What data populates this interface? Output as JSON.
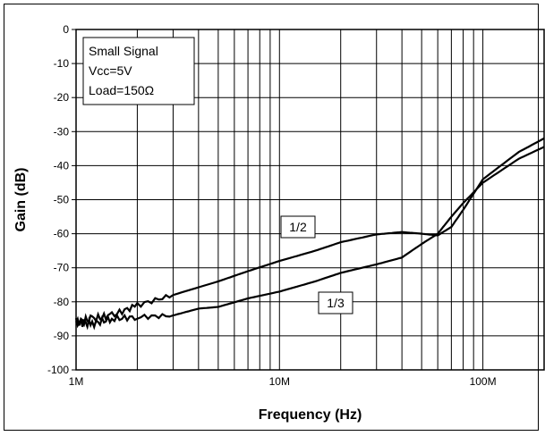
{
  "chart_data": {
    "type": "line",
    "title": "",
    "xlabel": "Frequency  (Hz)",
    "ylabel": "Gain  (dB)",
    "xscale": "log",
    "xlim": [
      1000000,
      200000000
    ],
    "ylim": [
      -100,
      0
    ],
    "grid": true,
    "x_ticks": [
      {
        "value": 1000000,
        "label": "1M"
      },
      {
        "value": 10000000,
        "label": "10M"
      },
      {
        "value": 100000000,
        "label": "100M"
      }
    ],
    "y_ticks": [
      0,
      -10,
      -20,
      -30,
      -40,
      -50,
      -60,
      -70,
      -80,
      -90,
      -100
    ],
    "annotation_box": [
      "Small Signal",
      "Vcc=5V",
      "Load=150Ω"
    ],
    "series": [
      {
        "name": "1/2",
        "x": [
          1000000,
          1200000,
          1500000,
          2000000,
          3000000,
          5000000,
          7000000,
          10000000,
          15000000,
          20000000,
          30000000,
          40000000,
          50000000,
          60000000,
          70000000,
          80000000,
          100000000,
          150000000,
          200000000
        ],
        "y": [
          -86,
          -85,
          -84,
          -81,
          -78,
          -74,
          -71,
          -68,
          -65,
          -62.5,
          -60.2,
          -59.5,
          -60,
          -60.5,
          -58,
          -53,
          -44,
          -36,
          -32
        ]
      },
      {
        "name": "1/3",
        "x": [
          1000000,
          1200000,
          1500000,
          2000000,
          3000000,
          4000000,
          5000000,
          7000000,
          10000000,
          15000000,
          20000000,
          30000000,
          40000000,
          50000000,
          60000000,
          70000000,
          80000000,
          100000000,
          150000000,
          200000000
        ],
        "y": [
          -86,
          -86.5,
          -85,
          -84.5,
          -84,
          -82,
          -81.5,
          -79,
          -77,
          -74,
          -71.5,
          -69,
          -67,
          -63,
          -60,
          -55,
          -51,
          -45,
          -38,
          -34.5
        ]
      }
    ]
  }
}
